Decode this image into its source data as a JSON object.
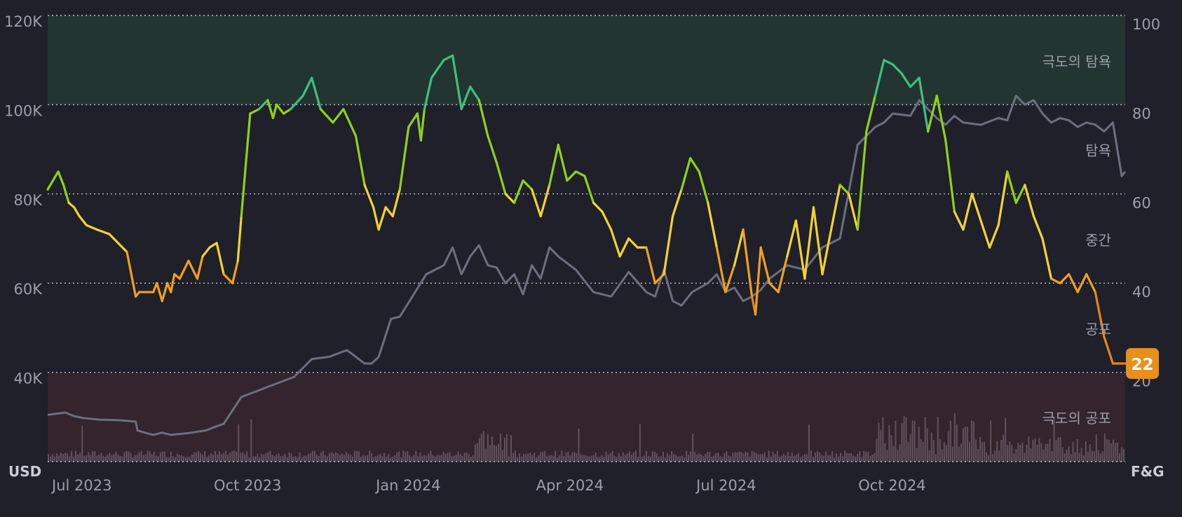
{
  "chart_data": {
    "type": "line",
    "left_axis": {
      "label": "USD",
      "ticks": [
        "120K",
        "100K",
        "80K",
        "60K",
        "40K"
      ],
      "range": [
        20000,
        120000
      ]
    },
    "right_axis": {
      "label": "F&G",
      "ticks": [
        "100",
        "80",
        "60",
        "40",
        "20"
      ],
      "range": [
        0,
        100
      ]
    },
    "x_ticks": [
      "Jul 2023",
      "Oct 2023",
      "Jan 2024",
      "Apr 2024",
      "Jul 2024",
      "Oct 2024"
    ],
    "x_tick_days": [
      0,
      92,
      184,
      275,
      366,
      458
    ],
    "zones": [
      {
        "label": "극도의 탐욕",
        "from": 80,
        "to": 100,
        "color": "#233530"
      },
      {
        "label": "탐욕",
        "value": 70
      },
      {
        "label": "중간",
        "value": 50
      },
      {
        "label": "공포",
        "value": 30
      },
      {
        "label": "극도의 공포",
        "from": 0,
        "to": 20,
        "color": "#33242d"
      }
    ],
    "grid": true,
    "current_value": "22",
    "colors": {
      "background": "#1f2029",
      "price_line": "#6b6f80",
      "volume": "#6a5a68",
      "extreme_greed": "#3fbf7f",
      "greed": "#8fd11c",
      "neutral": "#f2d335",
      "fear": "#f0a020",
      "extreme_fear": "#e8831c",
      "badge": "#e8901c"
    },
    "series": [
      {
        "kind": "price_usd",
        "x": [
          0,
          6,
          10,
          15,
          20,
          30,
          40,
          50,
          51,
          55,
          60,
          65,
          70,
          80,
          90,
          95,
          100,
          110,
          120,
          130,
          140,
          150,
          160,
          170,
          180,
          184,
          188,
          195,
          200,
          215,
          225,
          230,
          235,
          240,
          245,
          250,
          255,
          260,
          265,
          270,
          275,
          280,
          285,
          290,
          300,
          310,
          320,
          330,
          340,
          345,
          350,
          355,
          360,
          366,
          375,
          380,
          385,
          390,
          395,
          400,
          405,
          410,
          420,
          430,
          440,
          450,
          460,
          470,
          475,
          480,
          490,
          495,
          500,
          505,
          510,
          515,
          520,
          530,
          540,
          545,
          550,
          555,
          560,
          565,
          570,
          575,
          580,
          585,
          590,
          595,
          600,
          605,
          610,
          612
        ],
        "values": [
          30500,
          30800,
          31000,
          30200,
          29800,
          29400,
          29300,
          29000,
          27000,
          26500,
          26000,
          26500,
          26000,
          26400,
          27000,
          27800,
          28500,
          34500,
          36000,
          37500,
          39000,
          43000,
          43500,
          45000,
          42000,
          42000,
          43500,
          52000,
          52500,
          62000,
          64000,
          68000,
          62000,
          66000,
          68500,
          64000,
          63500,
          60000,
          62000,
          57500,
          64000,
          61000,
          68000,
          66000,
          63000,
          58000,
          57000,
          62500,
          58000,
          57000,
          63000,
          56000,
          55000,
          58000,
          60000,
          62000,
          58000,
          59000,
          56000,
          57000,
          58500,
          61000,
          64000,
          63000,
          68000,
          70000,
          91000,
          95000,
          96000,
          98000,
          97500,
          101000,
          99000,
          97000,
          95500,
          97500,
          96000,
          95500,
          97000,
          96500,
          102000,
          100000,
          101000,
          98000,
          96000,
          97000,
          96500,
          95000,
          96000,
          95500,
          94000,
          96000,
          84000,
          85000
        ]
      },
      {
        "kind": "fear_greed_index",
        "x": [
          0,
          3,
          6,
          9,
          12,
          15,
          18,
          22,
          28,
          35,
          45,
          50,
          52,
          60,
          62,
          65,
          68,
          70,
          72,
          75,
          80,
          85,
          88,
          92,
          96,
          100,
          105,
          108,
          110,
          115,
          120,
          125,
          128,
          130,
          134,
          138,
          145,
          150,
          155,
          162,
          168,
          175,
          180,
          185,
          188,
          192,
          196,
          200,
          205,
          210,
          212,
          214,
          218,
          225,
          230,
          235,
          240,
          245,
          250,
          255,
          260,
          265,
          270,
          275,
          280,
          285,
          290,
          295,
          300,
          305,
          310,
          315,
          320,
          325,
          330,
          335,
          340,
          345,
          350,
          355,
          360,
          365,
          370,
          375,
          380,
          385,
          390,
          395,
          400,
          402,
          405,
          410,
          415,
          420,
          425,
          430,
          435,
          440,
          445,
          450,
          455,
          460,
          465,
          470,
          475,
          480,
          485,
          490,
          495,
          500,
          505,
          510,
          515,
          520,
          525,
          530,
          535,
          540,
          545,
          550,
          555,
          560,
          565,
          570,
          575,
          580,
          585,
          590,
          595,
          600,
          605,
          608,
          612
        ],
        "values": [
          61,
          63,
          65,
          62,
          58,
          57,
          55,
          53,
          52,
          51,
          47,
          37,
          38,
          38,
          40,
          36,
          40,
          38,
          42,
          41,
          45,
          41,
          46,
          48,
          49,
          42,
          40,
          45,
          55,
          78,
          79,
          81,
          77,
          80,
          78,
          79,
          82,
          86,
          79,
          76,
          79,
          73,
          62,
          57,
          52,
          57,
          55,
          61,
          75,
          78,
          72,
          79,
          86,
          90,
          91,
          79,
          84,
          81,
          73,
          67,
          60,
          58,
          63,
          61,
          55,
          62,
          71,
          63,
          65,
          64,
          58,
          56,
          52,
          46,
          50,
          48,
          48,
          40,
          42,
          55,
          61,
          68,
          65,
          58,
          48,
          38,
          44,
          52,
          37,
          33,
          48,
          40,
          38,
          46,
          54,
          41,
          57,
          42,
          52,
          62,
          60,
          52,
          74,
          82,
          90,
          89,
          87,
          84,
          86,
          74,
          82,
          72,
          56,
          52,
          60,
          54,
          48,
          53,
          65,
          58,
          62,
          55,
          50,
          41,
          40,
          42,
          38,
          42,
          38,
          28,
          22,
          22,
          22
        ]
      }
    ]
  }
}
